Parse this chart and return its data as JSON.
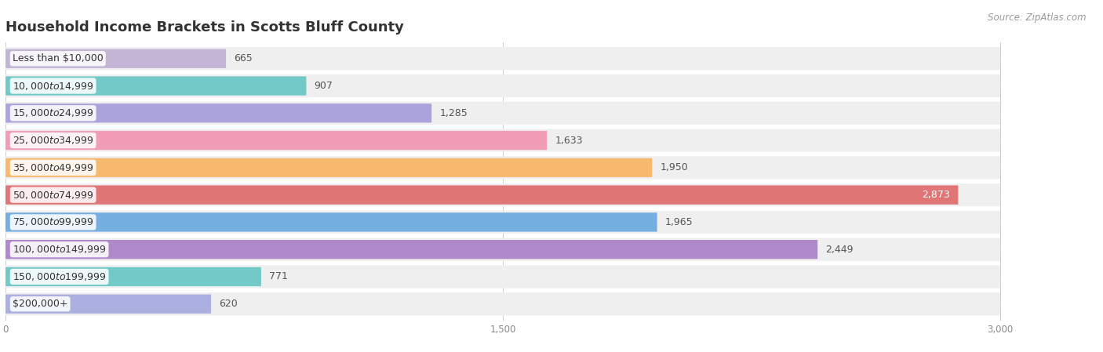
{
  "title": "Household Income Brackets in Scotts Bluff County",
  "source": "Source: ZipAtlas.com",
  "categories": [
    "Less than $10,000",
    "$10,000 to $14,999",
    "$15,000 to $24,999",
    "$25,000 to $34,999",
    "$35,000 to $49,999",
    "$50,000 to $74,999",
    "$75,000 to $99,999",
    "$100,000 to $149,999",
    "$150,000 to $199,999",
    "$200,000+"
  ],
  "values": [
    665,
    907,
    1285,
    1633,
    1950,
    2873,
    1965,
    2449,
    771,
    620
  ],
  "bar_colors": [
    "#c5b5d5",
    "#72cac8",
    "#aba3dc",
    "#f09db5",
    "#f7b96e",
    "#e07575",
    "#75aee0",
    "#b088cc",
    "#72cac8",
    "#abb0e0"
  ],
  "xlim": [
    0,
    3000
  ],
  "xticks": [
    0,
    1500,
    3000
  ],
  "xtick_labels": [
    "0",
    "1,500",
    "3,000"
  ],
  "background_color": "#ffffff",
  "row_bg_color": "#efefef",
  "title_fontsize": 13,
  "label_fontsize": 9,
  "value_fontsize": 9,
  "source_fontsize": 8.5
}
